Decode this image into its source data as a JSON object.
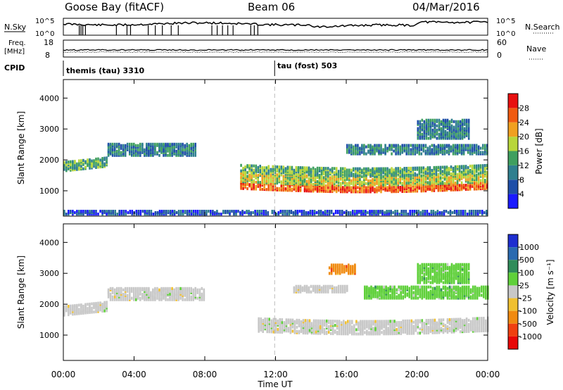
{
  "header": {
    "station": "Goose Bay (fitACF)",
    "beam": "Beam 06",
    "date": "04/Mar/2016"
  },
  "status_panel": {
    "left_labels": {
      "nsky": "N.Sky",
      "freq_line1": "Freq.",
      "freq_line2": "[MHz]",
      "cpid": "CPID"
    },
    "right_labels": {
      "nsearch": "N.Search",
      "nave": "Nave"
    },
    "noise_ticks_left": [
      "10^5",
      "10^0"
    ],
    "noise_ticks_right": [
      "10^5",
      "10^0"
    ],
    "freq_ticks_left": [
      "18",
      "8"
    ],
    "nave_ticks_right": [
      "60",
      "0"
    ],
    "cpid_segments": [
      {
        "label": "themis (tau) 3310",
        "start_hour": 0
      },
      {
        "label": "tau (fost) 503",
        "start_hour": 11.95
      }
    ]
  },
  "x_axis": {
    "label": "Time UT",
    "ticks": [
      "00:00",
      "04:00",
      "08:00",
      "12:00",
      "16:00",
      "20:00",
      "00:00"
    ],
    "tick_hours": [
      0,
      4,
      8,
      12,
      16,
      20,
      24
    ]
  },
  "panels": {
    "power": {
      "ylabel": "Slant Range [km]",
      "yticks": [
        "1000",
        "2000",
        "3000",
        "4000"
      ],
      "colorbar_title": "Power [dB]",
      "colorbar_labels": [
        "4",
        "8",
        "12",
        "16",
        "20",
        "24",
        "28"
      ],
      "colors": [
        "#1a1aff",
        "#1f4fa8",
        "#2f7f8f",
        "#3f9f5f",
        "#b8d63a",
        "#f0a020",
        "#f05a10",
        "#e81010"
      ]
    },
    "velocity": {
      "ylabel": "Slant Range [km]",
      "yticks": [
        "1000",
        "2000",
        "3000",
        "4000"
      ],
      "colorbar_title": "Velocity [m s⁻¹]",
      "colorbar_labels": [
        "1000",
        "500",
        "100",
        "25",
        "-25",
        "-100",
        "-500",
        "-1000"
      ],
      "colors": [
        "#1e2ed0",
        "#2a6ab0",
        "#2f8c5a",
        "#5fd03a",
        "#c8c8c8",
        "#f0c030",
        "#f08a10",
        "#f04010",
        "#e80808"
      ]
    }
  },
  "chart_data": [
    {
      "type": "heatmap",
      "name": "power",
      "x_range_hours": [
        0,
        24
      ],
      "y_range_km": [
        180,
        4600
      ],
      "echo_regions": [
        {
          "t0": 0.0,
          "t1": 2.5,
          "r0": 1650,
          "r1": 1950,
          "level": 3
        },
        {
          "t0": 2.5,
          "t1": 7.5,
          "r0": 2150,
          "r1": 2550,
          "level": 2
        },
        {
          "t0": 10.0,
          "t1": 24.0,
          "r0": 1080,
          "r1": 1300,
          "level": 6
        },
        {
          "t0": 10.0,
          "t1": 24.0,
          "r0": 1300,
          "r1": 1600,
          "level": 4
        },
        {
          "t0": 10.0,
          "t1": 24.0,
          "r0": 1600,
          "r1": 1850,
          "level": 3
        },
        {
          "t0": 16.0,
          "t1": 24.0,
          "r0": 2200,
          "r1": 2500,
          "level": 2
        },
        {
          "t0": 20.0,
          "t1": 23.0,
          "r0": 2700,
          "r1": 3300,
          "level": 2
        },
        {
          "t0": 0.0,
          "t1": 24.0,
          "r0": 250,
          "r1": 350,
          "level": 1
        }
      ]
    },
    {
      "type": "heatmap",
      "name": "velocity",
      "x_range_hours": [
        0,
        24
      ],
      "y_range_km": [
        180,
        4600
      ],
      "echo_regions": [
        {
          "t0": 0.0,
          "t1": 2.5,
          "r0": 1650,
          "r1": 1950,
          "v": 0
        },
        {
          "t0": 2.5,
          "t1": 8.0,
          "r0": 2150,
          "r1": 2550,
          "v": 0
        },
        {
          "t0": 11.0,
          "t1": 24.0,
          "r0": 1150,
          "r1": 1600,
          "v": 0
        },
        {
          "t0": 17.0,
          "t1": 24.0,
          "r0": 2200,
          "r1": 2600,
          "v": 60
        },
        {
          "t0": 20.0,
          "t1": 23.0,
          "r0": 2700,
          "r1": 3300,
          "v": 60
        },
        {
          "t0": 13.0,
          "t1": 16.0,
          "r0": 2400,
          "r1": 2600,
          "v": 0
        },
        {
          "t0": 15.0,
          "t1": 16.5,
          "r0": 3000,
          "r1": 3300,
          "v": -120
        }
      ]
    }
  ]
}
